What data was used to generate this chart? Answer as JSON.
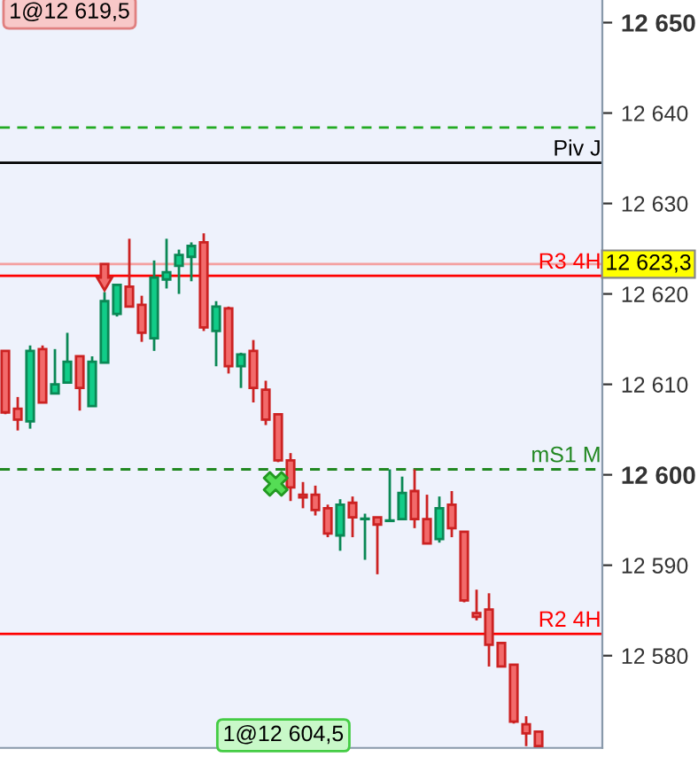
{
  "chart_data": {
    "type": "candlestick",
    "categories": [
      null,
      null,
      null,
      null,
      null,
      null,
      null,
      null,
      null,
      null,
      null,
      null,
      null,
      null,
      null,
      null,
      null,
      null,
      null,
      null,
      null,
      null,
      null,
      null,
      null,
      null,
      null,
      null,
      null,
      null,
      null,
      null,
      null,
      null,
      null,
      null,
      null,
      null,
      null,
      null,
      null,
      null,
      null,
      null
    ],
    "ohlc": [
      [
        12613.7,
        12613.7,
        12606.7,
        12606.9
      ],
      [
        12607.3,
        12608.6,
        12604.9,
        12606.1
      ],
      [
        12605.9,
        12614.3,
        12605.1,
        12613.7
      ],
      [
        12613.9,
        12614.3,
        12608.0,
        12608.0
      ],
      [
        12609.0,
        12613.9,
        12609.0,
        12610.0
      ],
      [
        12610.2,
        12615.7,
        12610.2,
        12612.5
      ],
      [
        12613.1,
        12613.1,
        12607.1,
        12609.6
      ],
      [
        12607.6,
        12613.1,
        12607.6,
        12612.5
      ],
      [
        12612.4,
        12620.2,
        12612.4,
        12619.2
      ],
      [
        12617.8,
        12621.0,
        12617.5,
        12621.0
      ],
      [
        12620.8,
        12626.1,
        12618.6,
        12618.6
      ],
      [
        12618.8,
        12619.8,
        12614.7,
        12615.7
      ],
      [
        12615.1,
        12623.7,
        12613.7,
        12621.8
      ],
      [
        12621.6,
        12626.1,
        12620.6,
        12622.4
      ],
      [
        12623.1,
        12624.9,
        12620.0,
        12624.3
      ],
      [
        12624.1,
        12625.7,
        12621.4,
        12625.3
      ],
      [
        12625.7,
        12626.7,
        12615.9,
        12616.3
      ],
      [
        12615.9,
        12619.2,
        12612.0,
        12618.6
      ],
      [
        12618.4,
        12618.6,
        12611.2,
        12612.0
      ],
      [
        12612.0,
        12613.5,
        12609.6,
        12613.3
      ],
      [
        12613.7,
        12614.9,
        12608.0,
        12609.6
      ],
      [
        12609.4,
        12610.4,
        12605.5,
        12606.1
      ],
      [
        12606.7,
        12606.7,
        12601.4,
        12601.6
      ],
      [
        12601.6,
        12602.4,
        12597.1,
        12598.6
      ],
      [
        12597.8,
        12599.2,
        12596.3,
        12597.5
      ],
      [
        12597.8,
        12598.8,
        12595.5,
        12596.1
      ],
      [
        12596.3,
        12596.7,
        12593.1,
        12593.5
      ],
      [
        12593.3,
        12597.3,
        12591.6,
        12596.7
      ],
      [
        12596.9,
        12597.6,
        12593.1,
        12595.3
      ],
      [
        12595.1,
        12595.7,
        12590.6,
        12595.1
      ],
      [
        12595.3,
        12595.3,
        12589.0,
        12594.5
      ],
      [
        12594.9,
        12600.6,
        12594.9,
        12594.9
      ],
      [
        12595.1,
        12599.8,
        12595.1,
        12598.0
      ],
      [
        12598.2,
        12600.6,
        12594.1,
        12595.1
      ],
      [
        12595.1,
        12597.8,
        12592.4,
        12592.4
      ],
      [
        12592.9,
        12597.6,
        12592.5,
        12596.3
      ],
      [
        12596.7,
        12598.2,
        12593.1,
        12594.1
      ],
      [
        12593.7,
        12593.7,
        12585.9,
        12586.1
      ],
      [
        12584.7,
        12587.3,
        12583.9,
        12584.3
      ],
      [
        12585.1,
        12586.9,
        12578.8,
        12581.2
      ],
      [
        12581.4,
        12581.4,
        12578.8,
        12578.8
      ],
      [
        12579.0,
        12579.0,
        12572.5,
        12572.7
      ],
      [
        12572.4,
        12573.3,
        12570.0,
        12571.4
      ],
      [
        12571.6,
        12571.6,
        12570.0,
        12570.0
      ]
    ],
    "ylim": [
      12569.8,
      12652.5
    ],
    "yticks": [
      {
        "value": 12580,
        "label": "12 580"
      },
      {
        "value": 12590,
        "label": "12 590"
      },
      {
        "value": 12600,
        "label": "12 600"
      },
      {
        "value": 12610,
        "label": "12 610"
      },
      {
        "value": 12620,
        "label": "12 620"
      },
      {
        "value": 12630,
        "label": "12 630"
      },
      {
        "value": 12640,
        "label": "12 640"
      },
      {
        "value": 12650,
        "label": "12 650"
      }
    ],
    "tick_labels": "y",
    "ref_lines": [
      {
        "axis": "y",
        "value": 12638.4,
        "label": null,
        "color": "#22aa22",
        "line_style": "dashed"
      },
      {
        "axis": "y",
        "value": 12634.5,
        "label": "Piv J",
        "color": "#000000",
        "line_style": "solid"
      },
      {
        "axis": "y",
        "value": 12623.3,
        "label": "12 623,3",
        "color": "#f4a0a0",
        "line_style": "solid"
      },
      {
        "axis": "y",
        "value": 12622.0,
        "label": "R3 4H",
        "color": "#ff0000",
        "line_style": "solid"
      },
      {
        "axis": "y",
        "value": 12600.6,
        "label": "mS1 M",
        "color": "#228822",
        "line_style": "dashed"
      },
      {
        "axis": "y",
        "value": 12582.4,
        "label": "R2 4H",
        "color": "#ff0000",
        "line_style": "solid"
      }
    ],
    "annotations": [
      "1@12 619,5",
      "1@12 604,5"
    ],
    "grid": false
  }
}
